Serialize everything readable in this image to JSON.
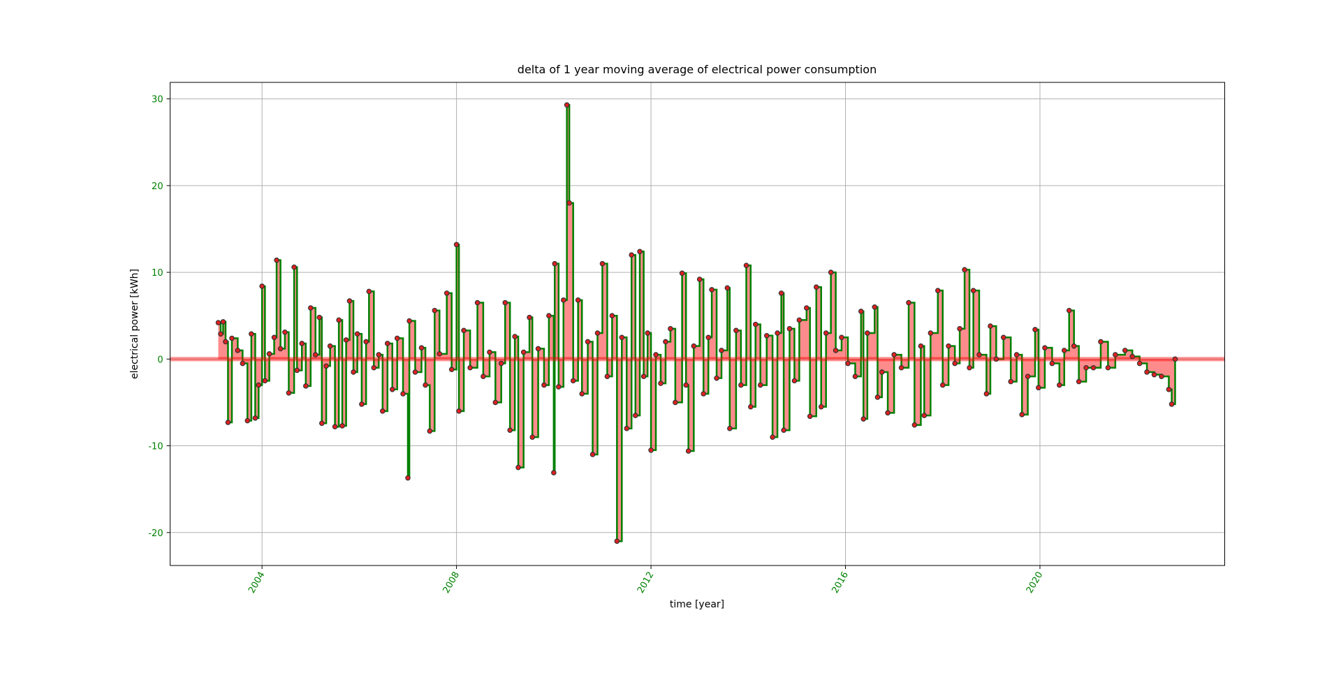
{
  "chart_data": {
    "type": "line",
    "drawstyle": "steps-post",
    "title": "delta of 1 year moving average of electrical power consumption",
    "xlabel": "time [year]",
    "ylabel": "electrical power [kWh]",
    "color": "#008000",
    "marker_color": "#e02020",
    "fill_color": "#ff0000",
    "grid": true,
    "xlim": [
      2002.11,
      2023.8
    ],
    "ylim": [
      -23.8,
      31.9
    ],
    "xticks": [
      2004,
      2008,
      2012,
      2016,
      2020
    ],
    "yticks": [
      -20,
      -10,
      0,
      10,
      20,
      30
    ],
    "x": [
      2003.1,
      2003.15,
      2003.2,
      2003.25,
      2003.3,
      2003.38,
      2003.5,
      2003.6,
      2003.7,
      2003.78,
      2003.86,
      2003.93,
      2004.0,
      2004.06,
      2004.15,
      2004.25,
      2004.3,
      2004.38,
      2004.47,
      2004.55,
      2004.66,
      2004.72,
      2004.82,
      2004.9,
      2005.0,
      2005.1,
      2005.18,
      2005.23,
      2005.32,
      2005.4,
      2005.5,
      2005.58,
      2005.65,
      2005.73,
      2005.8,
      2005.88,
      2005.96,
      2006.05,
      2006.14,
      2006.2,
      2006.3,
      2006.4,
      2006.48,
      2006.58,
      2006.68,
      2006.78,
      2006.9,
      2007.0,
      2007.03,
      2007.15,
      2007.28,
      2007.36,
      2007.45,
      2007.55,
      2007.65,
      2007.8,
      2007.9,
      2008.0,
      2008.05,
      2008.15,
      2008.28,
      2008.43,
      2008.55,
      2008.68,
      2008.8,
      2008.92,
      2009.0,
      2009.1,
      2009.2,
      2009.27,
      2009.38,
      2009.5,
      2009.56,
      2009.68,
      2009.8,
      2009.9,
      2010.0,
      2010.02,
      2010.1,
      2010.2,
      2010.27,
      2010.32,
      2010.4,
      2010.5,
      2010.58,
      2010.7,
      2010.8,
      2010.9,
      2011.0,
      2011.1,
      2011.2,
      2011.3,
      2011.4,
      2011.5,
      2011.6,
      2011.68,
      2011.77,
      2011.85,
      2011.93,
      2012.0,
      2012.1,
      2012.2,
      2012.3,
      2012.4,
      2012.5,
      2012.64,
      2012.72,
      2012.77,
      2012.88,
      2013.0,
      2013.08,
      2013.18,
      2013.25,
      2013.35,
      2013.45,
      2013.57,
      2013.62,
      2013.75,
      2013.85,
      2013.96,
      2014.05,
      2014.15,
      2014.25,
      2014.38,
      2014.5,
      2014.6,
      2014.68,
      2014.73,
      2014.85,
      2014.95,
      2015.05,
      2015.2,
      2015.27,
      2015.4,
      2015.5,
      2015.6,
      2015.7,
      2015.8,
      2015.92,
      2016.05,
      2016.2,
      2016.32,
      2016.37,
      2016.45,
      2016.6,
      2016.66,
      2016.75,
      2016.87,
      2017.0,
      2017.15,
      2017.3,
      2017.42,
      2017.55,
      2017.62,
      2017.75,
      2017.9,
      2018.0,
      2018.12,
      2018.25,
      2018.35,
      2018.45,
      2018.55,
      2018.63,
      2018.75,
      2018.9,
      2018.98,
      2019.1,
      2019.25,
      2019.4,
      2019.52,
      2019.63,
      2019.75,
      2019.9,
      2019.97,
      2020.1,
      2020.25,
      2020.4,
      2020.5,
      2020.6,
      2020.7,
      2020.8,
      2020.95,
      2021.1,
      2021.25,
      2021.4,
      2021.55,
      2021.75,
      2021.9,
      2022.05,
      2022.2,
      2022.35,
      2022.5,
      2022.65,
      2022.71,
      2022.78
    ],
    "values": [
      4.2,
      2.9,
      4.3,
      2.0,
      -7.3,
      2.4,
      1.0,
      -0.5,
      -7.1,
      2.9,
      -6.8,
      -3.0,
      8.4,
      -2.5,
      0.6,
      2.5,
      11.4,
      1.2,
      3.1,
      -3.9,
      10.6,
      -1.3,
      1.8,
      -3.1,
      5.9,
      0.5,
      4.8,
      -7.4,
      -0.8,
      1.5,
      -7.8,
      4.5,
      -7.7,
      2.2,
      6.7,
      -1.5,
      2.9,
      -5.2,
      2.0,
      7.8,
      -1.0,
      0.5,
      -6.0,
      1.8,
      -3.5,
      2.4,
      -4.0,
      -13.7,
      4.4,
      -1.5,
      1.3,
      -3.0,
      -8.3,
      5.6,
      0.6,
      7.6,
      -1.2,
      13.2,
      -6.0,
      3.3,
      -1.0,
      6.5,
      -2.0,
      0.8,
      -5.0,
      -0.5,
      6.5,
      -8.2,
      2.6,
      -12.5,
      0.8,
      4.8,
      -9.0,
      1.2,
      -3.0,
      5.0,
      -13.1,
      11.0,
      -3.2,
      6.8,
      29.3,
      18.0,
      -2.5,
      6.8,
      -4.0,
      2.0,
      -11.0,
      3.0,
      11.0,
      -2.0,
      5.0,
      -21.0,
      2.5,
      -8.0,
      12.0,
      -6.5,
      12.4,
      -2.0,
      3.0,
      -10.5,
      0.5,
      -2.8,
      2.0,
      3.5,
      -5.0,
      9.9,
      -3.0,
      -10.6,
      1.5,
      9.2,
      -4.0,
      2.5,
      8.0,
      -2.2,
      1.0,
      8.2,
      -8.0,
      3.3,
      -3.0,
      10.8,
      -5.5,
      4.0,
      -3.0,
      2.7,
      -9.0,
      3.0,
      7.6,
      -8.2,
      3.5,
      -2.5,
      4.5,
      5.9,
      -6.6,
      8.3,
      -5.5,
      3.0,
      10.0,
      1.0,
      2.5,
      -0.5,
      -2.0,
      5.5,
      -6.9,
      3.0,
      6.0,
      -4.4,
      -1.5,
      -6.2,
      0.5,
      -1.0,
      6.5,
      -7.6,
      1.5,
      -6.5,
      3.0,
      7.9,
      -3.0,
      1.5,
      -0.5,
      3.5,
      10.3,
      -1.0,
      7.9,
      0.5,
      -4.0,
      3.8,
      0.0,
      2.5,
      -2.6,
      0.5,
      -6.4,
      -2.0,
      3.4,
      -3.3,
      1.3,
      -0.5,
      -3.0,
      1.0,
      5.6,
      1.5,
      -2.6,
      -1.0,
      -1.0,
      2.0,
      -1.0,
      0.5,
      1.0,
      0.3,
      -0.5,
      -1.5,
      -1.8,
      -2.0,
      -3.5,
      -5.2,
      0.0
    ]
  }
}
